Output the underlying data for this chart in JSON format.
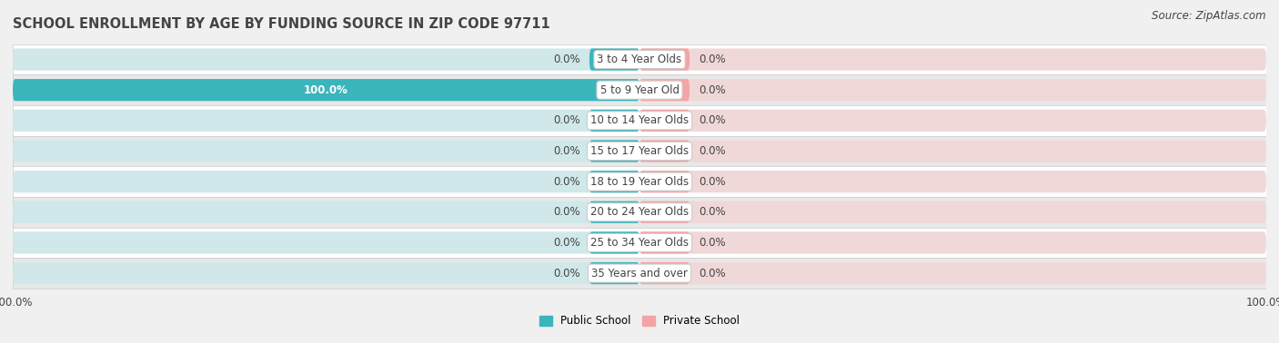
{
  "title": "SCHOOL ENROLLMENT BY AGE BY FUNDING SOURCE IN ZIP CODE 97711",
  "source": "Source: ZipAtlas.com",
  "categories": [
    "3 to 4 Year Olds",
    "5 to 9 Year Old",
    "10 to 14 Year Olds",
    "15 to 17 Year Olds",
    "18 to 19 Year Olds",
    "20 to 24 Year Olds",
    "25 to 34 Year Olds",
    "35 Years and over"
  ],
  "public_values": [
    0.0,
    100.0,
    0.0,
    0.0,
    0.0,
    0.0,
    0.0,
    0.0
  ],
  "private_values": [
    0.0,
    0.0,
    0.0,
    0.0,
    0.0,
    0.0,
    0.0,
    0.0
  ],
  "public_color": "#3ab5bc",
  "private_color": "#f4a4a4",
  "background_color": "#f0f0f0",
  "row_color_odd": "#ffffff",
  "row_color_even": "#e8e8e8",
  "bar_bg_color_left": "#d0e8ea",
  "bar_bg_color_right": "#f0d8d8",
  "stub_size": 8.0,
  "bar_height": 0.72,
  "xlim": 100,
  "title_fontsize": 10.5,
  "label_fontsize": 8.5,
  "cat_fontsize": 8.5,
  "tick_fontsize": 8.5,
  "source_fontsize": 8.5,
  "text_color": "#444444",
  "white_text_color": "#ffffff"
}
